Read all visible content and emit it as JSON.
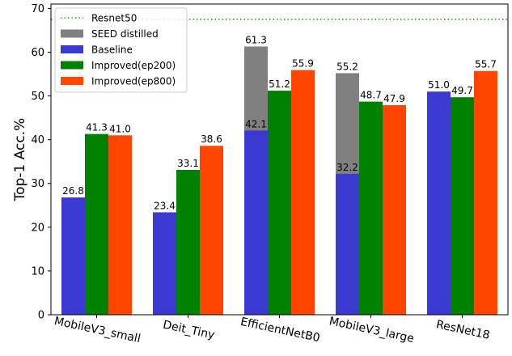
{
  "chart_data": {
    "type": "bar",
    "title": "",
    "xlabel": "",
    "ylabel": "Top-1 Acc.%",
    "ylim": [
      0,
      71
    ],
    "yticks": [
      0,
      10,
      20,
      30,
      40,
      50,
      60,
      70
    ],
    "categories": [
      "MobileV3_small",
      "Deit_Tiny",
      "EfficientNetB0",
      "MobileV3_large",
      "ResNet18"
    ],
    "reference_line": {
      "name": "Resnet50",
      "value": 67.5,
      "color": "#2ca02c",
      "style": "dotted"
    },
    "series": [
      {
        "name": "SEED distilled",
        "color": "#808080",
        "values": [
          null,
          null,
          61.3,
          55.2,
          null
        ],
        "labels": [
          "",
          "",
          "61.3",
          "55.2",
          ""
        ],
        "overlay_on": "Baseline"
      },
      {
        "name": "Baseline",
        "color": "#3a3ad0",
        "values": [
          26.8,
          23.4,
          42.1,
          32.2,
          51.0
        ],
        "labels": [
          "26.8",
          "23.4",
          "42.1",
          "32.2",
          "51.0"
        ]
      },
      {
        "name": "Improved(ep200)",
        "color": "#008000",
        "values": [
          41.3,
          33.1,
          51.2,
          48.7,
          49.7
        ],
        "labels": [
          "41.3",
          "33.1",
          "51.2",
          "48.7",
          "49.7"
        ]
      },
      {
        "name": "Improved(ep800)",
        "color": "#ff4500",
        "values": [
          41.0,
          38.6,
          55.9,
          47.9,
          55.7
        ],
        "labels": [
          "41.0",
          "38.6",
          "55.9",
          "47.9",
          "55.7"
        ]
      }
    ],
    "legend": {
      "position": "top-left"
    },
    "grid": false
  }
}
